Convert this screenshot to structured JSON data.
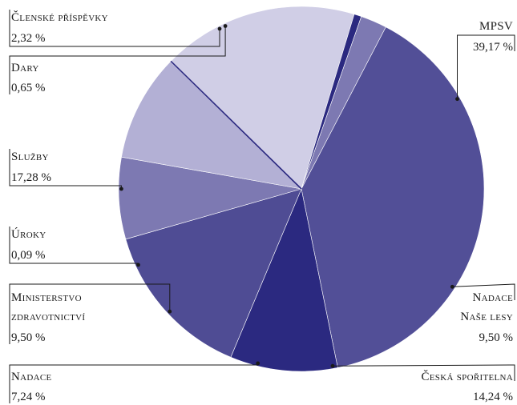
{
  "chart_data": {
    "type": "pie",
    "title": "",
    "slices": [
      {
        "label": "MPSV",
        "label_lines": [
          "MPSV"
        ],
        "value": 39.17,
        "value_text": "39,17 %",
        "color": "#524f97"
      },
      {
        "label": "Nadace Naše lesy",
        "label_lines": [
          "Nadace",
          "Naše lesy"
        ],
        "value": 9.5,
        "value_text": "9,50 %",
        "color": "#2b2980"
      },
      {
        "label": "Česká spořitelna",
        "label_lines": [
          "Česká spořitelna"
        ],
        "value": 14.24,
        "value_text": "14,24 %",
        "color": "#4f4c94"
      },
      {
        "label": "Nadace",
        "label_lines": [
          "Nadace"
        ],
        "value": 7.24,
        "value_text": "7,24 %",
        "color": "#7d79b2"
      },
      {
        "label": "Ministerstvo zdravotnictví",
        "label_lines": [
          "Ministerstvo",
          "zdravotnictví"
        ],
        "value": 9.5,
        "value_text": "9,50 %",
        "color": "#b3b0d5"
      },
      {
        "label": "Úroky",
        "label_lines": [
          "Úroky"
        ],
        "value": 0.09,
        "value_text": "0,09 %",
        "color": "#2b2980"
      },
      {
        "label": "Služby",
        "label_lines": [
          "Služby"
        ],
        "value": 17.28,
        "value_text": "17,28 %",
        "color": "#d0cee6"
      },
      {
        "label": "Dary",
        "label_lines": [
          "Dary"
        ],
        "value": 0.65,
        "value_text": "0,65 %",
        "color": "#2b2980"
      },
      {
        "label": "Členské příspěvky",
        "label_lines": [
          "Členské příspěvky"
        ],
        "value": 2.32,
        "value_text": "2,32 %",
        "color": "#7d79b2"
      }
    ],
    "legend": "none",
    "labels": "outside with leader lines"
  }
}
